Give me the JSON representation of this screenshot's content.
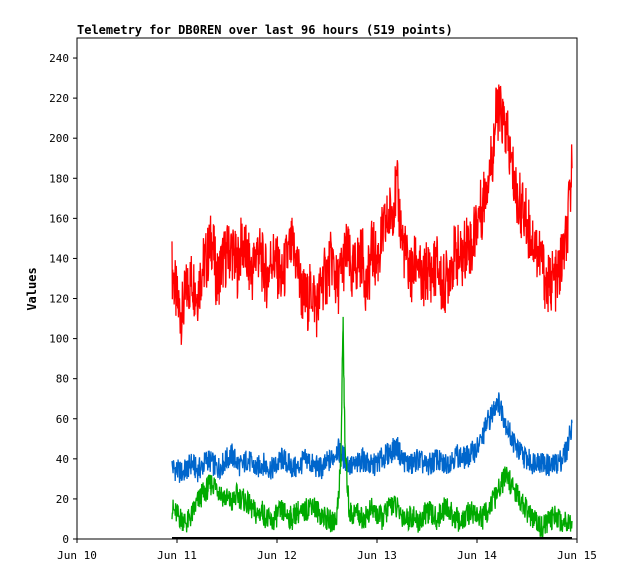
{
  "chart_data": {
    "type": "line",
    "title": "Telemetry for DB0REN over last 96 hours (519 points)",
    "ylabel": "Values",
    "xlabel": "",
    "x_range_days": [
      "Jun 10",
      "Jun 15"
    ],
    "x_ticks": [
      "Jun 10",
      "Jun 11",
      "Jun 12",
      "Jun 13",
      "Jun 14",
      "Jun 15"
    ],
    "ylim": [
      0,
      250
    ],
    "y_ticks": [
      0,
      20,
      40,
      60,
      80,
      100,
      120,
      140,
      160,
      180,
      200,
      220,
      240
    ],
    "grid": false,
    "legend": "none",
    "series": [
      {
        "color": "#ff0000",
        "x": [
          10.95,
          11.0,
          11.05,
          11.1,
          11.15,
          11.2,
          11.25,
          11.3,
          11.35,
          11.4,
          11.45,
          11.5,
          11.55,
          11.6,
          11.65,
          11.7,
          11.75,
          11.8,
          11.85,
          11.9,
          11.95,
          12.0,
          12.05,
          12.1,
          12.15,
          12.2,
          12.25,
          12.3,
          12.35,
          12.4,
          12.45,
          12.5,
          12.55,
          12.6,
          12.65,
          12.7,
          12.75,
          12.8,
          12.85,
          12.9,
          12.95,
          13.0,
          13.05,
          13.1,
          13.15,
          13.2,
          13.25,
          13.3,
          13.35,
          13.4,
          13.45,
          13.5,
          13.55,
          13.6,
          13.65,
          13.7,
          13.75,
          13.8,
          13.85,
          13.9,
          13.95,
          14.0,
          14.05,
          14.1,
          14.15,
          14.2,
          14.25,
          14.3,
          14.35,
          14.4,
          14.45,
          14.5,
          14.55,
          14.6,
          14.65,
          14.7,
          14.75,
          14.8,
          14.85,
          14.9,
          14.95
        ],
        "values": [
          135,
          118,
          112,
          125,
          130,
          122,
          135,
          140,
          150,
          128,
          138,
          142,
          145,
          135,
          148,
          140,
          132,
          145,
          138,
          130,
          142,
          136,
          128,
          140,
          145,
          138,
          122,
          118,
          125,
          115,
          128,
          132,
          140,
          125,
          135,
          145,
          130,
          138,
          142,
          125,
          145,
          138,
          150,
          158,
          165,
          175,
          150,
          138,
          130,
          142,
          125,
          135,
          132,
          138,
          125,
          130,
          140,
          142,
          138,
          150,
          145,
          160,
          165,
          180,
          190,
          215,
          210,
          200,
          185,
          170,
          165,
          158,
          150,
          145,
          138,
          125,
          130,
          128,
          140,
          150,
          185
        ]
      },
      {
        "color": "#0066cc",
        "x": [
          10.95,
          11.0,
          11.05,
          11.1,
          11.15,
          11.2,
          11.25,
          11.3,
          11.35,
          11.4,
          11.45,
          11.5,
          11.55,
          11.6,
          11.65,
          11.7,
          11.75,
          11.8,
          11.85,
          11.9,
          11.95,
          12.0,
          12.05,
          12.1,
          12.15,
          12.2,
          12.25,
          12.3,
          12.35,
          12.4,
          12.45,
          12.5,
          12.55,
          12.6,
          12.65,
          12.7,
          12.75,
          12.8,
          12.85,
          12.9,
          12.95,
          13.0,
          13.05,
          13.1,
          13.15,
          13.2,
          13.25,
          13.3,
          13.35,
          13.4,
          13.45,
          13.5,
          13.55,
          13.6,
          13.65,
          13.7,
          13.75,
          13.8,
          13.85,
          13.9,
          13.95,
          14.0,
          14.05,
          14.1,
          14.15,
          14.2,
          14.25,
          14.3,
          14.35,
          14.4,
          14.45,
          14.5,
          14.55,
          14.6,
          14.65,
          14.7,
          14.75,
          14.8,
          14.85,
          14.9,
          14.95
        ],
        "values": [
          36,
          34,
          33,
          35,
          38,
          34,
          36,
          40,
          38,
          35,
          37,
          40,
          42,
          38,
          36,
          40,
          37,
          35,
          38,
          36,
          35,
          37,
          40,
          38,
          36,
          35,
          38,
          40,
          37,
          36,
          35,
          38,
          40,
          45,
          42,
          38,
          36,
          37,
          40,
          38,
          36,
          38,
          40,
          42,
          44,
          46,
          40,
          38,
          37,
          40,
          38,
          36,
          38,
          40,
          37,
          38,
          40,
          42,
          40,
          41,
          43,
          45,
          50,
          58,
          62,
          70,
          64,
          56,
          50,
          45,
          42,
          40,
          38,
          40,
          38,
          37,
          36,
          38,
          40,
          45,
          58
        ]
      },
      {
        "color": "#00aa00",
        "x": [
          10.95,
          11.0,
          11.05,
          11.1,
          11.15,
          11.2,
          11.25,
          11.3,
          11.35,
          11.4,
          11.45,
          11.5,
          11.55,
          11.6,
          11.65,
          11.7,
          11.75,
          11.8,
          11.85,
          11.9,
          11.95,
          12.0,
          12.05,
          12.1,
          12.15,
          12.2,
          12.25,
          12.3,
          12.35,
          12.4,
          12.45,
          12.5,
          12.55,
          12.6,
          12.64,
          12.66,
          12.68,
          12.72,
          12.75,
          12.8,
          12.85,
          12.9,
          12.95,
          13.0,
          13.05,
          13.1,
          13.15,
          13.2,
          13.25,
          13.3,
          13.35,
          13.4,
          13.45,
          13.5,
          13.55,
          13.6,
          13.65,
          13.7,
          13.75,
          13.8,
          13.85,
          13.9,
          13.95,
          14.0,
          14.05,
          14.1,
          14.15,
          14.2,
          14.25,
          14.3,
          14.35,
          14.4,
          14.45,
          14.5,
          14.55,
          14.6,
          14.65,
          14.7,
          14.75,
          14.8,
          14.85,
          14.9,
          14.95
        ],
        "values": [
          15,
          12,
          10,
          8,
          12,
          18,
          22,
          25,
          28,
          26,
          22,
          20,
          18,
          22,
          20,
          18,
          15,
          12,
          14,
          10,
          8,
          12,
          14,
          12,
          10,
          14,
          12,
          15,
          18,
          14,
          12,
          10,
          8,
          12,
          40,
          110,
          45,
          15,
          12,
          14,
          10,
          12,
          15,
          12,
          10,
          14,
          18,
          15,
          12,
          10,
          12,
          8,
          10,
          14,
          12,
          10,
          14,
          16,
          12,
          10,
          8,
          12,
          14,
          12,
          10,
          14,
          18,
          22,
          28,
          32,
          26,
          22,
          18,
          14,
          10,
          8,
          6,
          8,
          10,
          12,
          8,
          10,
          9
        ]
      },
      {
        "color": "#000000",
        "x": [
          10.95,
          14.95
        ],
        "values": [
          0.5,
          0.5
        ]
      }
    ]
  }
}
